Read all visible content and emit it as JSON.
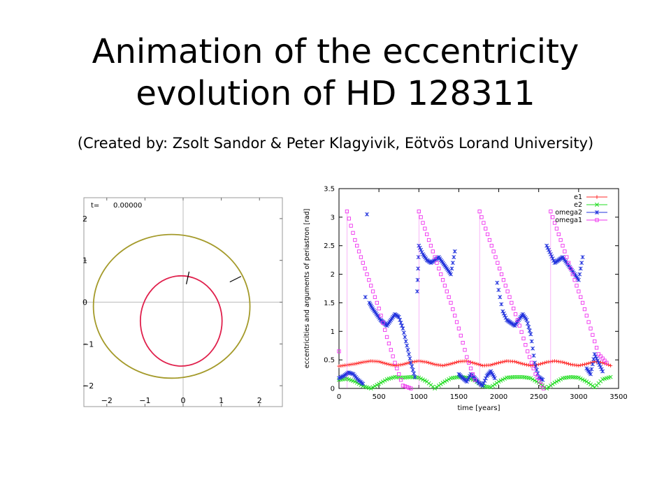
{
  "slide": {
    "title_line1": "Animation of the eccentricity",
    "title_line2": "evolution of HD 128311",
    "subtitle": "(Created by: Zsolt Sandor & Peter Klagyivik, Eötvös Lorand University)"
  },
  "chart_data": [
    {
      "type": "scatter",
      "title": "",
      "time_label": "t=",
      "time_value": "0.00000",
      "xlabel": "",
      "ylabel": "",
      "xlim": [
        -2.6,
        2.6
      ],
      "ylim": [
        -2.5,
        2.5
      ],
      "xticks": [
        -2,
        -1,
        0,
        1,
        2
      ],
      "yticks": [
        -2,
        -1,
        0,
        1,
        2
      ],
      "xtick_labels": [
        "−2",
        "−1",
        "0",
        "1",
        "2"
      ],
      "ytick_labels": [
        "−2",
        "−1",
        "0",
        "1",
        "2"
      ],
      "axes_lines_through_origin": true,
      "orbits": [
        {
          "name": "inner",
          "color": "#e0204c",
          "center": [
            -0.05,
            -0.45
          ],
          "a": 1.07,
          "b": 1.08
        },
        {
          "name": "outer",
          "color": "#a49a2a",
          "center": [
            -0.3,
            -0.1
          ],
          "a": 2.05,
          "b": 1.72
        }
      ],
      "planet_markers": [
        {
          "orbit": "inner",
          "at": [
            0.12,
            0.58
          ]
        },
        {
          "orbit": "outer",
          "at": [
            1.37,
            0.55
          ]
        }
      ]
    },
    {
      "type": "scatter",
      "title": "",
      "xlabel": "time [years]",
      "ylabel": "eccentricities and arguments of periastron [rad]",
      "xlim": [
        0,
        3500
      ],
      "ylim": [
        0,
        3.5
      ],
      "xticks": [
        0,
        500,
        1000,
        1500,
        2000,
        2500,
        3000,
        3500
      ],
      "yticks": [
        0,
        0.5,
        1,
        1.5,
        2,
        2.5,
        3,
        3.5
      ],
      "xtick_labels": [
        "0",
        "500",
        "1000",
        "1500",
        "2000",
        "2500",
        "3000",
        "3500"
      ],
      "ytick_labels": [
        "0",
        "0.5",
        "1",
        "1.5",
        "2",
        "2.5",
        "3",
        "3.5"
      ],
      "legend": "top-right",
      "series": [
        {
          "name": "e1",
          "color": "#ff2a2a",
          "marker": "+",
          "x": [
            0,
            100,
            200,
            300,
            400,
            500,
            600,
            700,
            800,
            900,
            1000,
            1100,
            1200,
            1300,
            1400,
            1500,
            1600,
            1700,
            1800,
            1900,
            2000,
            2100,
            2200,
            2300,
            2400,
            2500,
            2600,
            2700,
            2800,
            2900,
            3000,
            3100,
            3200,
            3300,
            3400
          ],
          "values": [
            0.39,
            0.41,
            0.43,
            0.46,
            0.48,
            0.47,
            0.43,
            0.4,
            0.42,
            0.46,
            0.48,
            0.46,
            0.42,
            0.4,
            0.43,
            0.47,
            0.48,
            0.44,
            0.4,
            0.41,
            0.45,
            0.48,
            0.47,
            0.43,
            0.4,
            0.42,
            0.46,
            0.48,
            0.46,
            0.42,
            0.4,
            0.43,
            0.47,
            0.45,
            0.4
          ]
        },
        {
          "name": "e2",
          "color": "#22dd22",
          "marker": "x",
          "x": [
            0,
            100,
            200,
            300,
            400,
            500,
            600,
            700,
            800,
            900,
            1000,
            1100,
            1200,
            1300,
            1400,
            1500,
            1600,
            1700,
            1800,
            1900,
            2000,
            2100,
            2200,
            2300,
            2400,
            2500,
            2600,
            2700,
            2800,
            2900,
            3000,
            3100,
            3200,
            3300,
            3400
          ],
          "values": [
            0.15,
            0.17,
            0.12,
            0.04,
            0.0,
            0.08,
            0.16,
            0.2,
            0.19,
            0.2,
            0.19,
            0.12,
            0.0,
            0.1,
            0.18,
            0.2,
            0.19,
            0.14,
            0.04,
            0.02,
            0.12,
            0.19,
            0.2,
            0.2,
            0.18,
            0.1,
            0.0,
            0.1,
            0.18,
            0.2,
            0.19,
            0.12,
            0.02,
            0.16,
            0.2
          ]
        },
        {
          "name": "omega2",
          "color": "#2233dd",
          "marker": "*",
          "x": [
            0,
            60,
            120,
            180,
            240,
            300,
            330,
            350,
            380,
            420,
            470,
            520,
            560,
            600,
            650,
            700,
            750,
            800,
            850,
            900,
            950,
            980,
            1000,
            1050,
            1100,
            1150,
            1200,
            1250,
            1300,
            1350,
            1400,
            1450,
            1500,
            1550,
            1600,
            1650,
            1700,
            1750,
            1800,
            1850,
            1900,
            1950,
            1980,
            2050,
            2100,
            2150,
            2200,
            2250,
            2300,
            2350,
            2400,
            2450,
            2500,
            2550,
            2600,
            2650,
            2700,
            2750,
            2800,
            2850,
            2900,
            2950,
            3000,
            3050,
            3100,
            3150,
            3200,
            3250,
            3300
          ],
          "values": [
            0.18,
            0.22,
            0.28,
            0.25,
            0.15,
            0.08,
            1.6,
            3.05,
            1.5,
            1.4,
            1.3,
            1.2,
            1.15,
            1.1,
            1.2,
            1.3,
            1.25,
            1.05,
            0.75,
            0.45,
            0.2,
            1.7,
            2.5,
            2.35,
            2.25,
            2.2,
            2.25,
            2.3,
            2.2,
            2.1,
            2.0,
            2.4,
            0.25,
            0.18,
            0.12,
            0.25,
            0.18,
            0.1,
            0.05,
            0.22,
            0.3,
            0.18,
            1.85,
            1.35,
            1.2,
            1.15,
            1.1,
            1.2,
            1.3,
            1.2,
            0.95,
            0.45,
            0.2,
            0.15,
            2.5,
            2.35,
            2.2,
            2.25,
            2.3,
            2.2,
            2.1,
            2.0,
            1.9,
            2.3,
            0.35,
            0.25,
            0.6,
            0.45,
            0.3
          ]
        },
        {
          "name": "omega1",
          "color": "#ee33ee",
          "marker": "square",
          "x": [
            0,
            100,
            200,
            300,
            400,
            500,
            600,
            700,
            800,
            900,
            1000,
            1100,
            1200,
            1300,
            1400,
            1500,
            1600,
            1700,
            1760,
            1860,
            1960,
            2060,
            2160,
            2260,
            2360,
            2460,
            2560,
            2650,
            2750,
            2850,
            2950,
            3050,
            3150,
            3250,
            3350
          ],
          "values": [
            0.65,
            3.1,
            2.6,
            2.2,
            1.8,
            1.4,
            0.9,
            0.45,
            0.05,
            0.0,
            3.1,
            2.7,
            2.3,
            1.9,
            1.5,
            1.05,
            0.55,
            0.15,
            3.1,
            2.7,
            2.3,
            1.9,
            1.5,
            1.1,
            0.65,
            0.25,
            0.0,
            3.1,
            2.7,
            2.3,
            1.9,
            1.5,
            1.05,
            0.6,
            0.45
          ]
        }
      ]
    }
  ]
}
